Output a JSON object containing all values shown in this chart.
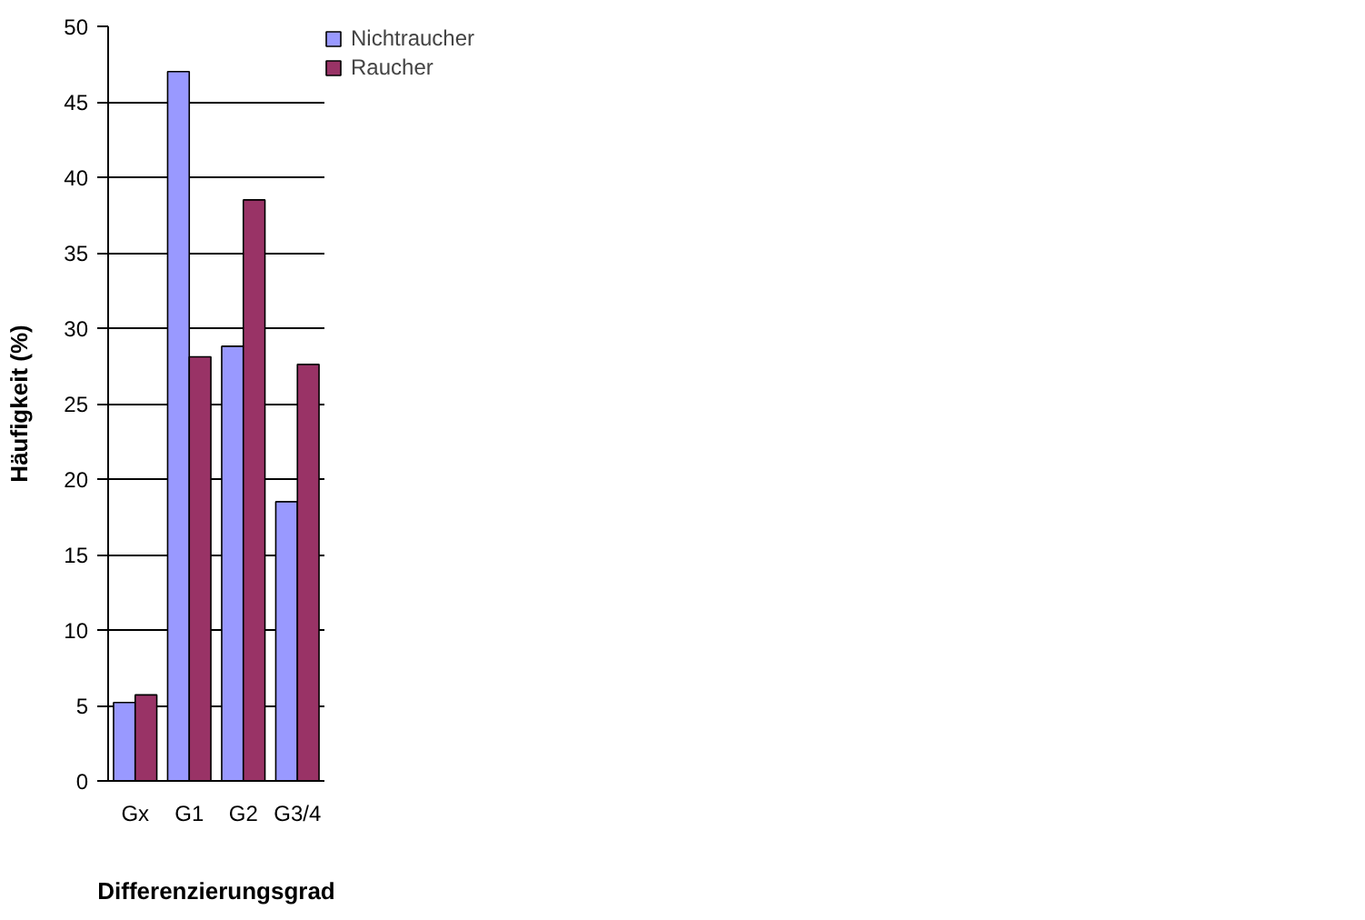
{
  "chart_data": {
    "type": "bar",
    "xlabel": "Differenzierungsgrad",
    "ylabel": "Häufigkeit (%)",
    "categories": [
      "Gx",
      "G1",
      "G2",
      "G3/4"
    ],
    "series": [
      {
        "name": "Nichtraucher",
        "color": "#9999ff",
        "values": [
          5.2,
          47,
          28.8,
          18.5
        ]
      },
      {
        "name": "Raucher",
        "color": "#993366",
        "values": [
          5.7,
          28.1,
          38.5,
          27.6
        ]
      }
    ],
    "ylim": [
      0,
      50
    ],
    "yticks": [
      0,
      5,
      10,
      15,
      20,
      25,
      30,
      35,
      40,
      45,
      50
    ],
    "grid": "y",
    "legend": "top right"
  }
}
